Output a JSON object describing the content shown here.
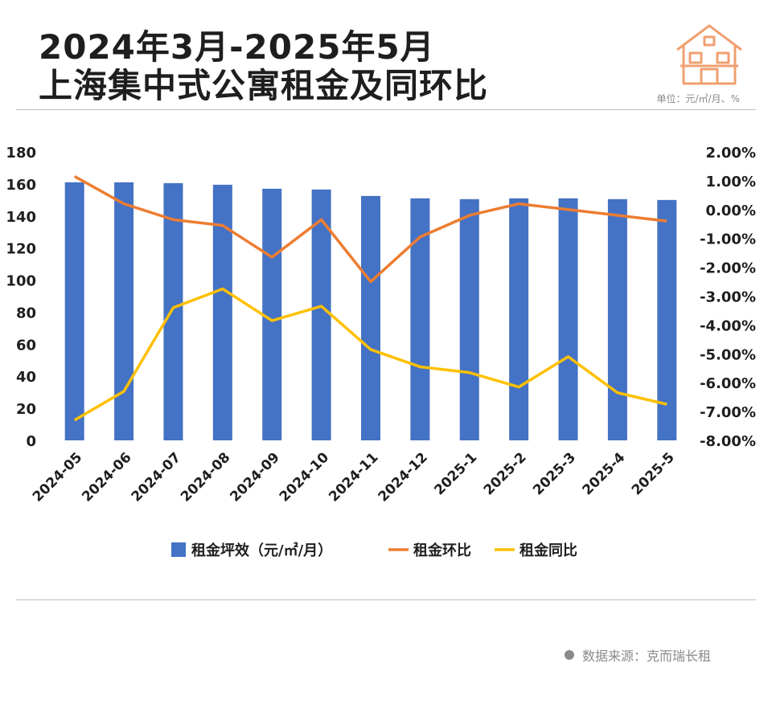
{
  "header": {
    "title_line1": "2024年3月-2025年5月",
    "title_line2": "上海集中式公寓租金及同环比",
    "unit_note": "单位：元/㎡/月、%",
    "logo_icon": "house-icon"
  },
  "footer": {
    "source_text": "数据来源：克而瑞长租"
  },
  "colors": {
    "bar": "#4472C4",
    "mom": "#ED7D31",
    "yoy": "#FFC000",
    "text": "#1e1e1e"
  },
  "chart_data": {
    "type": "bar",
    "categories": [
      "2024-05",
      "2024-06",
      "2024-07",
      "2024-08",
      "2024-09",
      "2024-10",
      "2024-11",
      "2024-12",
      "2025-1",
      "2025-2",
      "2025-3",
      "2025-4",
      "2025-5"
    ],
    "series": [
      {
        "name": "租金坪效（元/㎡/月）",
        "type": "bar",
        "axis": "left",
        "values": [
          161,
          161,
          160.5,
          159.5,
          157,
          156.5,
          152.5,
          151,
          150.5,
          151,
          151,
          150.5,
          150
        ]
      },
      {
        "name": "租金环比",
        "type": "line",
        "axis": "right",
        "values": [
          1.15,
          0.2,
          -0.35,
          -0.55,
          -1.65,
          -0.35,
          -2.5,
          -0.95,
          -0.2,
          0.2,
          0.0,
          -0.2,
          -0.4
        ]
      },
      {
        "name": "租金同比",
        "type": "line",
        "axis": "right",
        "values": [
          -7.3,
          -6.3,
          -3.4,
          -2.75,
          -3.85,
          -3.35,
          -4.85,
          -5.45,
          -5.65,
          -6.15,
          -5.1,
          -6.35,
          -6.75
        ]
      }
    ],
    "ylim": [
      0,
      180
    ],
    "yticks": [
      "0",
      "20",
      "40",
      "60",
      "80",
      "100",
      "120",
      "140",
      "160",
      "180"
    ],
    "y2lim": [
      -8,
      2
    ],
    "y2ticks": [
      "-8.00%",
      "-7.00%",
      "-6.00%",
      "-5.00%",
      "-4.00%",
      "-3.00%",
      "-2.00%",
      "-1.00%",
      "0.00%",
      "1.00%",
      "2.00%"
    ],
    "legend_position": "bottom",
    "grid": false
  }
}
